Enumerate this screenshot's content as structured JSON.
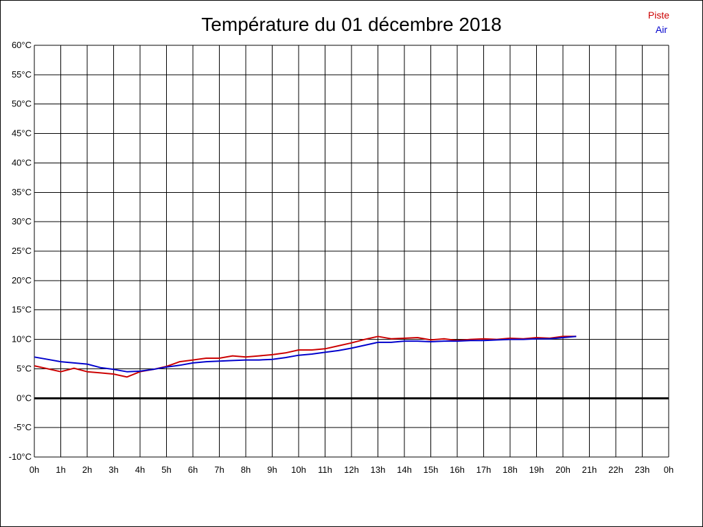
{
  "chart_data": {
    "type": "line",
    "title": "Température du 01 décembre 2018",
    "xlabel": "",
    "ylabel": "",
    "x_ticks": [
      "0h",
      "1h",
      "2h",
      "3h",
      "4h",
      "5h",
      "6h",
      "7h",
      "8h",
      "9h",
      "10h",
      "11h",
      "12h",
      "13h",
      "14h",
      "15h",
      "16h",
      "17h",
      "18h",
      "19h",
      "20h",
      "21h",
      "22h",
      "23h",
      "0h"
    ],
    "xlim": [
      0,
      24
    ],
    "y_ticks": [
      "60°C",
      "55°C",
      "50°C",
      "45°C",
      "40°C",
      "35°C",
      "30°C",
      "25°C",
      "20°C",
      "15°C",
      "10°C",
      "5°C",
      "0°C",
      "-5°C",
      "-10°C"
    ],
    "ylim": [
      -10,
      60
    ],
    "grid": true,
    "legend_position": "top-right",
    "series": [
      {
        "name": "Piste",
        "color": "#cc0000",
        "x": [
          0,
          0.5,
          1,
          1.5,
          2,
          2.5,
          3,
          3.5,
          4,
          4.5,
          5,
          5.5,
          6,
          6.5,
          7,
          7.5,
          8,
          8.5,
          9,
          9.5,
          10,
          10.5,
          11,
          11.5,
          12,
          12.5,
          13,
          13.5,
          14,
          14.5,
          15,
          15.5,
          16,
          16.5,
          17,
          17.5,
          18,
          18.5,
          19,
          19.5,
          20,
          20.5
        ],
        "y": [
          5.5,
          5.0,
          4.5,
          5.1,
          4.5,
          4.3,
          4.1,
          3.6,
          4.5,
          4.9,
          5.4,
          6.2,
          6.5,
          6.8,
          6.8,
          7.2,
          7.0,
          7.2,
          7.4,
          7.7,
          8.2,
          8.2,
          8.4,
          8.9,
          9.4,
          10.0,
          10.5,
          10.1,
          10.2,
          10.3,
          9.9,
          10.1,
          9.8,
          10.0,
          10.1,
          10.0,
          10.2,
          10.1,
          10.3,
          10.2,
          10.5,
          10.5
        ]
      },
      {
        "name": "Air",
        "color": "#0000cc",
        "x": [
          0,
          0.5,
          1,
          1.5,
          2,
          2.5,
          3,
          3.5,
          4,
          4.5,
          5,
          5.5,
          6,
          6.5,
          7,
          7.5,
          8,
          8.5,
          9,
          9.5,
          10,
          10.5,
          11,
          11.5,
          12,
          12.5,
          13,
          13.5,
          14,
          14.5,
          15,
          15.5,
          16,
          16.5,
          17,
          17.5,
          18,
          18.5,
          19,
          19.5,
          20,
          20.5
        ],
        "y": [
          7.0,
          6.6,
          6.2,
          6.0,
          5.8,
          5.2,
          4.9,
          4.5,
          4.6,
          4.9,
          5.3,
          5.6,
          6.0,
          6.2,
          6.3,
          6.4,
          6.5,
          6.5,
          6.6,
          6.9,
          7.3,
          7.5,
          7.8,
          8.1,
          8.5,
          9.0,
          9.5,
          9.5,
          9.7,
          9.7,
          9.6,
          9.7,
          9.7,
          9.8,
          9.8,
          9.9,
          10.0,
          10.0,
          10.1,
          10.1,
          10.3,
          10.5
        ]
      }
    ]
  }
}
